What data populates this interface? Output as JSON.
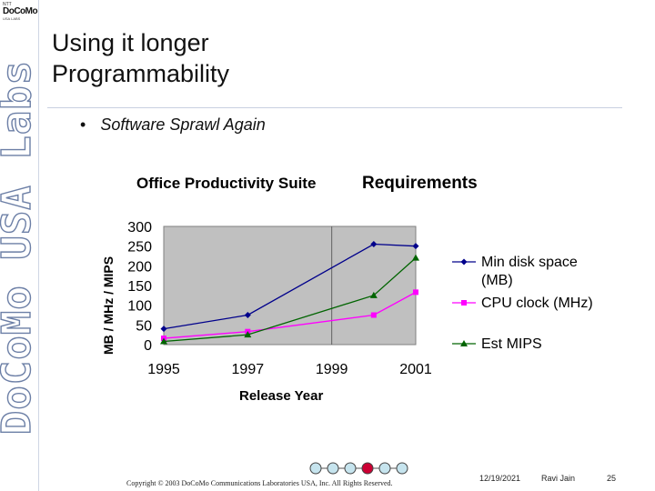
{
  "logo": {
    "top": "NTT",
    "main": "DoCoMo",
    "sub": "USA LABS"
  },
  "sidebar_text": "DoCoMo USA Labs",
  "slide": {
    "title_line1": "Using it longer",
    "title_line2": "Programmability",
    "bullet_marker": "•",
    "bullet": "Software Sprawl Again"
  },
  "chart_data": {
    "type": "line",
    "title_part1": "Office Productivity Suite",
    "title_part2": "Requirements",
    "xlabel": "Release Year",
    "ylabel": "MB / MHz / MIPS",
    "xlim": [
      1995,
      2001
    ],
    "ylim": [
      0,
      300
    ],
    "xticks": [
      1995,
      1997,
      1999,
      2001
    ],
    "yticks": [
      0,
      50,
      100,
      150,
      200,
      250,
      300
    ],
    "ref_line_x": 1999,
    "plot_bg": "#c0c0c0",
    "series": [
      {
        "name": "Min disk space (MB)",
        "legend_lines": [
          "Min disk space",
          "(MB)"
        ],
        "color": "#00008b",
        "marker": "diamond",
        "x": [
          1995,
          1997,
          2000,
          2001
        ],
        "y": [
          40,
          75,
          255,
          250
        ]
      },
      {
        "name": "CPU clock (MHz)",
        "legend_lines": [
          "CPU clock (MHz)"
        ],
        "color": "#ff00ff",
        "marker": "square",
        "x": [
          1995,
          1997,
          2000,
          2001
        ],
        "y": [
          16,
          33,
          75,
          133
        ]
      },
      {
        "name": "Est MIPS",
        "legend_lines": [
          "Est MIPS"
        ],
        "color": "#006400",
        "marker": "triangle",
        "x": [
          1995,
          1997,
          2000,
          2001
        ],
        "y": [
          8,
          25,
          125,
          220
        ]
      }
    ]
  },
  "footer": {
    "copyright": "Copyright © 2003 DoCoMo Communications Laboratories USA, Inc. All Rights Reserved.",
    "date": "12/19/2021",
    "author": "Ravi Jain",
    "page": "25",
    "nav_colors": [
      "#c6e4ee",
      "#c6e4ee",
      "#c6e4ee",
      "#cc0033",
      "#c6e4ee",
      "#c6e4ee"
    ]
  }
}
